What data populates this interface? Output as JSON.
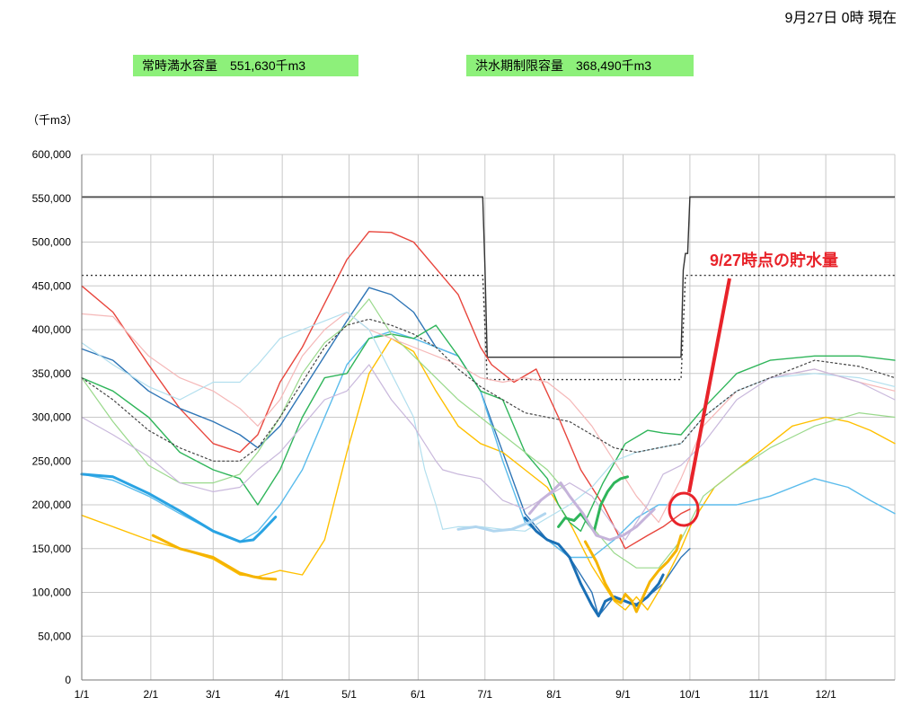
{
  "timestamp": "9月27日 0時 現在",
  "captions": [
    "常時満水容量　551,630千m3",
    "洪水期制限容量　368,490千m3"
  ],
  "annotation": "9/27時点の貯水量",
  "colors": {
    "grid": "#c8c8c8",
    "annotation": "#e8232a",
    "caption_bg": "#8df07a"
  },
  "chart_data": {
    "type": "line",
    "ylabel": "（千m3）",
    "ylim": [
      0,
      600000
    ],
    "yticks": [
      "0",
      "50,000",
      "100,000",
      "150,000",
      "200,000",
      "250,000",
      "300,000",
      "350,000",
      "400,000",
      "450,000",
      "500,000",
      "550,000",
      "600,000"
    ],
    "xlim": [
      1,
      366
    ],
    "xticks": [
      "1/1",
      "2/1",
      "3/1",
      "4/1",
      "5/1",
      "6/1",
      "7/1",
      "8/1",
      "9/1",
      "10/1",
      "11/1",
      "12/1"
    ],
    "grid": true,
    "legend": "none",
    "reference_lines": [
      {
        "style": "step",
        "color": "#333333",
        "x": [
          1,
          181,
          182,
          183,
          270,
          271,
          272,
          273,
          274,
          366
        ],
        "y": [
          551630,
          551630,
          470000,
          368490,
          368490,
          468000,
          487000,
          487000,
          551630,
          551630
        ]
      },
      {
        "style": "dotted",
        "color": "#333333",
        "x": [
          1,
          181,
          182,
          183,
          270,
          271,
          272,
          366
        ],
        "y": [
          462000,
          462000,
          402000,
          343000,
          343000,
          402000,
          462000,
          462000
        ]
      }
    ],
    "series": [
      {
        "color": "#e8453c",
        "width": 1.4,
        "x": [
          1,
          15,
          31,
          45,
          60,
          72,
          80,
          90,
          100,
          110,
          120,
          130,
          140,
          150,
          160,
          170,
          180,
          185,
          195,
          205,
          215,
          225,
          235,
          245,
          255,
          262,
          270,
          274
        ],
        "y": [
          450000,
          420000,
          360000,
          310000,
          270000,
          260000,
          280000,
          340000,
          380000,
          430000,
          480000,
          512000,
          511000,
          500000,
          470000,
          440000,
          380000,
          360000,
          340000,
          355000,
          300000,
          240000,
          200000,
          150000,
          165000,
          175000,
          190000,
          195000
        ]
      },
      {
        "color": "#2e75b6",
        "width": 1.4,
        "x": [
          1,
          15,
          31,
          45,
          60,
          72,
          80,
          90,
          100,
          110,
          120,
          130,
          140,
          150,
          160,
          170,
          180,
          190,
          200,
          210,
          220,
          230,
          233,
          240,
          245,
          250,
          255,
          262,
          270,
          274
        ],
        "y": [
          378000,
          365000,
          330000,
          310000,
          295000,
          280000,
          265000,
          290000,
          330000,
          370000,
          410000,
          448000,
          440000,
          420000,
          380000,
          370000,
          330000,
          260000,
          190000,
          160000,
          140000,
          100000,
          73000,
          95000,
          90000,
          87000,
          95000,
          110000,
          140000,
          150000
        ]
      },
      {
        "color": "#ffc000",
        "width": 1.4,
        "x": [
          1,
          15,
          31,
          45,
          60,
          72,
          80,
          90,
          100,
          110,
          120,
          130,
          140,
          150,
          160,
          170,
          180,
          190,
          200,
          210,
          220,
          230,
          240,
          245,
          250,
          255,
          262,
          270,
          275,
          285,
          300,
          320,
          335,
          345,
          355,
          366
        ],
        "y": [
          188000,
          175000,
          160000,
          150000,
          138000,
          120000,
          118000,
          125000,
          120000,
          160000,
          260000,
          350000,
          390000,
          375000,
          330000,
          290000,
          270000,
          260000,
          240000,
          220000,
          180000,
          130000,
          90000,
          80000,
          95000,
          80000,
          110000,
          150000,
          180000,
          220000,
          250000,
          290000,
          300000,
          295000,
          285000,
          270000
        ]
      },
      {
        "color": "#5bbcec",
        "width": 1.4,
        "x": [
          1,
          15,
          31,
          45,
          60,
          72,
          80,
          90,
          100,
          110,
          120,
          130,
          140,
          150,
          160,
          170,
          180,
          190,
          200,
          210,
          220,
          230,
          240,
          250,
          260,
          270,
          280,
          295,
          310,
          330,
          345,
          355,
          366
        ],
        "y": [
          235000,
          228000,
          210000,
          190000,
          170000,
          158000,
          170000,
          200000,
          240000,
          300000,
          360000,
          390000,
          398000,
          390000,
          380000,
          370000,
          330000,
          250000,
          180000,
          160000,
          140000,
          140000,
          160000,
          185000,
          200000,
          200000,
          200000,
          200000,
          210000,
          230000,
          220000,
          205000,
          190000
        ]
      },
      {
        "color": "#2fb55a",
        "width": 1.4,
        "x": [
          1,
          15,
          31,
          45,
          60,
          72,
          80,
          90,
          100,
          110,
          120,
          130,
          140,
          150,
          160,
          170,
          180,
          190,
          200,
          210,
          215,
          220,
          225,
          235,
          245,
          255,
          262,
          270,
          280,
          295,
          310,
          330,
          350,
          366
        ],
        "y": [
          345000,
          330000,
          300000,
          260000,
          240000,
          230000,
          200000,
          240000,
          300000,
          345000,
          350000,
          390000,
          395000,
          390000,
          405000,
          370000,
          330000,
          320000,
          260000,
          230000,
          200000,
          180000,
          170000,
          225000,
          270000,
          285000,
          282000,
          280000,
          310000,
          350000,
          365000,
          370000,
          370000,
          365000
        ]
      },
      {
        "color": "#9ad98c",
        "width": 1.2,
        "x": [
          1,
          15,
          31,
          45,
          60,
          72,
          80,
          90,
          100,
          110,
          120,
          130,
          140,
          150,
          160,
          170,
          180,
          190,
          200,
          210,
          220,
          230,
          240,
          250,
          260,
          270,
          280,
          295,
          310,
          330,
          350,
          366
        ],
        "y": [
          345000,
          295000,
          245000,
          225000,
          225000,
          235000,
          260000,
          300000,
          350000,
          385000,
          405000,
          435000,
          395000,
          370000,
          345000,
          320000,
          300000,
          280000,
          260000,
          240000,
          210000,
          175000,
          145000,
          128000,
          128000,
          160000,
          210000,
          240000,
          265000,
          290000,
          305000,
          300000
        ]
      },
      {
        "color": "#f5b8b8",
        "width": 1.2,
        "x": [
          1,
          15,
          31,
          45,
          60,
          72,
          80,
          90,
          100,
          110,
          120,
          130,
          140,
          150,
          160,
          170,
          180,
          190,
          200,
          210,
          220,
          230,
          240,
          250,
          260,
          270,
          280,
          295,
          310,
          330,
          350,
          366
        ],
        "y": [
          418000,
          415000,
          370000,
          345000,
          330000,
          310000,
          290000,
          320000,
          370000,
          400000,
          420000,
          400000,
          390000,
          380000,
          370000,
          360000,
          345000,
          340000,
          345000,
          340000,
          320000,
          290000,
          250000,
          210000,
          180000,
          230000,
          290000,
          330000,
          345000,
          355000,
          340000,
          330000
        ]
      },
      {
        "color": "#b2dfee",
        "width": 1.2,
        "x": [
          1,
          15,
          31,
          45,
          60,
          72,
          80,
          90,
          100,
          110,
          120,
          130,
          140,
          150,
          155,
          160,
          163,
          170,
          180,
          190,
          200,
          210,
          220,
          230,
          240,
          250,
          260,
          270,
          280,
          295,
          310,
          330,
          350,
          366
        ],
        "y": [
          385000,
          360000,
          335000,
          320000,
          340000,
          340000,
          360000,
          390000,
          400000,
          410000,
          420000,
          400000,
          350000,
          300000,
          240000,
          200000,
          172000,
          175000,
          175000,
          172000,
          170000,
          185000,
          200000,
          220000,
          250000,
          260000,
          265000,
          270000,
          300000,
          330000,
          345000,
          350000,
          345000,
          335000
        ]
      },
      {
        "color": "#c9b8dc",
        "width": 1.2,
        "x": [
          1,
          15,
          31,
          45,
          60,
          72,
          80,
          90,
          100,
          110,
          120,
          130,
          140,
          150,
          160,
          163,
          170,
          180,
          190,
          200,
          210,
          220,
          230,
          240,
          245,
          250,
          255,
          262,
          270,
          280,
          295,
          310,
          330,
          350,
          366
        ],
        "y": [
          300000,
          280000,
          255000,
          225000,
          215000,
          220000,
          240000,
          260000,
          290000,
          320000,
          330000,
          360000,
          320000,
          290000,
          250000,
          240000,
          235000,
          230000,
          205000,
          195000,
          210000,
          225000,
          210000,
          175000,
          160000,
          180000,
          200000,
          235000,
          245000,
          270000,
          320000,
          345000,
          355000,
          340000,
          320000
        ]
      },
      {
        "color": "#444444",
        "width": 1.2,
        "dash": "2 3",
        "x": [
          1,
          15,
          31,
          45,
          60,
          72,
          80,
          90,
          100,
          110,
          120,
          130,
          140,
          150,
          160,
          170,
          180,
          190,
          200,
          210,
          220,
          230,
          240,
          250,
          260,
          270,
          280,
          295,
          310,
          330,
          350,
          366
        ],
        "y": [
          345000,
          320000,
          285000,
          265000,
          250000,
          250000,
          265000,
          300000,
          340000,
          380000,
          405000,
          412000,
          405000,
          395000,
          380000,
          355000,
          335000,
          320000,
          305000,
          300000,
          295000,
          280000,
          265000,
          260000,
          265000,
          270000,
          300000,
          330000,
          345000,
          365000,
          358000,
          345000
        ]
      },
      {
        "color": "#1a6fb5",
        "width": 3,
        "x": [
          200,
          205,
          210,
          215,
          220,
          225,
          230,
          233,
          236,
          240,
          245,
          250,
          255,
          260,
          262
        ],
        "y": [
          185000,
          170000,
          160000,
          155000,
          140000,
          110000,
          85000,
          73000,
          90000,
          95000,
          90000,
          85000,
          95000,
          110000,
          120000
        ]
      },
      {
        "color": "#f5b400",
        "width": 3,
        "x": [
          227,
          232,
          236,
          240,
          243,
          245,
          248,
          250,
          253,
          256,
          260,
          264,
          268,
          270
        ],
        "y": [
          158000,
          135000,
          110000,
          92000,
          88000,
          98000,
          90000,
          78000,
          95000,
          112000,
          125000,
          135000,
          148000,
          165000
        ]
      },
      {
        "color": "#2fb55a",
        "width": 3,
        "x": [
          215,
          218,
          222,
          225,
          228,
          231,
          234,
          237,
          240,
          243,
          246
        ],
        "y": [
          175000,
          185000,
          182000,
          190000,
          180000,
          170000,
          200000,
          215000,
          225000,
          230000,
          232000
        ]
      },
      {
        "color": "#b1d6ef",
        "width": 3,
        "x": [
          170,
          178,
          186,
          194,
          202,
          209
        ],
        "y": [
          172000,
          175000,
          170000,
          172000,
          180000,
          190000
        ]
      },
      {
        "color": "#c5b3da",
        "width": 3,
        "x": [
          202,
          207,
          212,
          216,
          220,
          226,
          232,
          238,
          244,
          250,
          254,
          258
        ],
        "y": [
          190000,
          205000,
          215000,
          225000,
          210000,
          190000,
          165000,
          160000,
          165000,
          175000,
          185000,
          195000
        ]
      },
      {
        "color": "#29a3e3",
        "width": 3,
        "x": [
          1,
          15,
          31,
          45,
          60,
          72,
          78,
          82,
          88
        ],
        "y": [
          235000,
          232000,
          213000,
          193000,
          170000,
          158000,
          160000,
          170000,
          186000
        ]
      },
      {
        "color": "#f5b400",
        "width": 3,
        "x": [
          33,
          45,
          60,
          72,
          78,
          82,
          88
        ],
        "y": [
          165000,
          150000,
          140000,
          122000,
          118000,
          116000,
          115000
        ]
      }
    ]
  }
}
